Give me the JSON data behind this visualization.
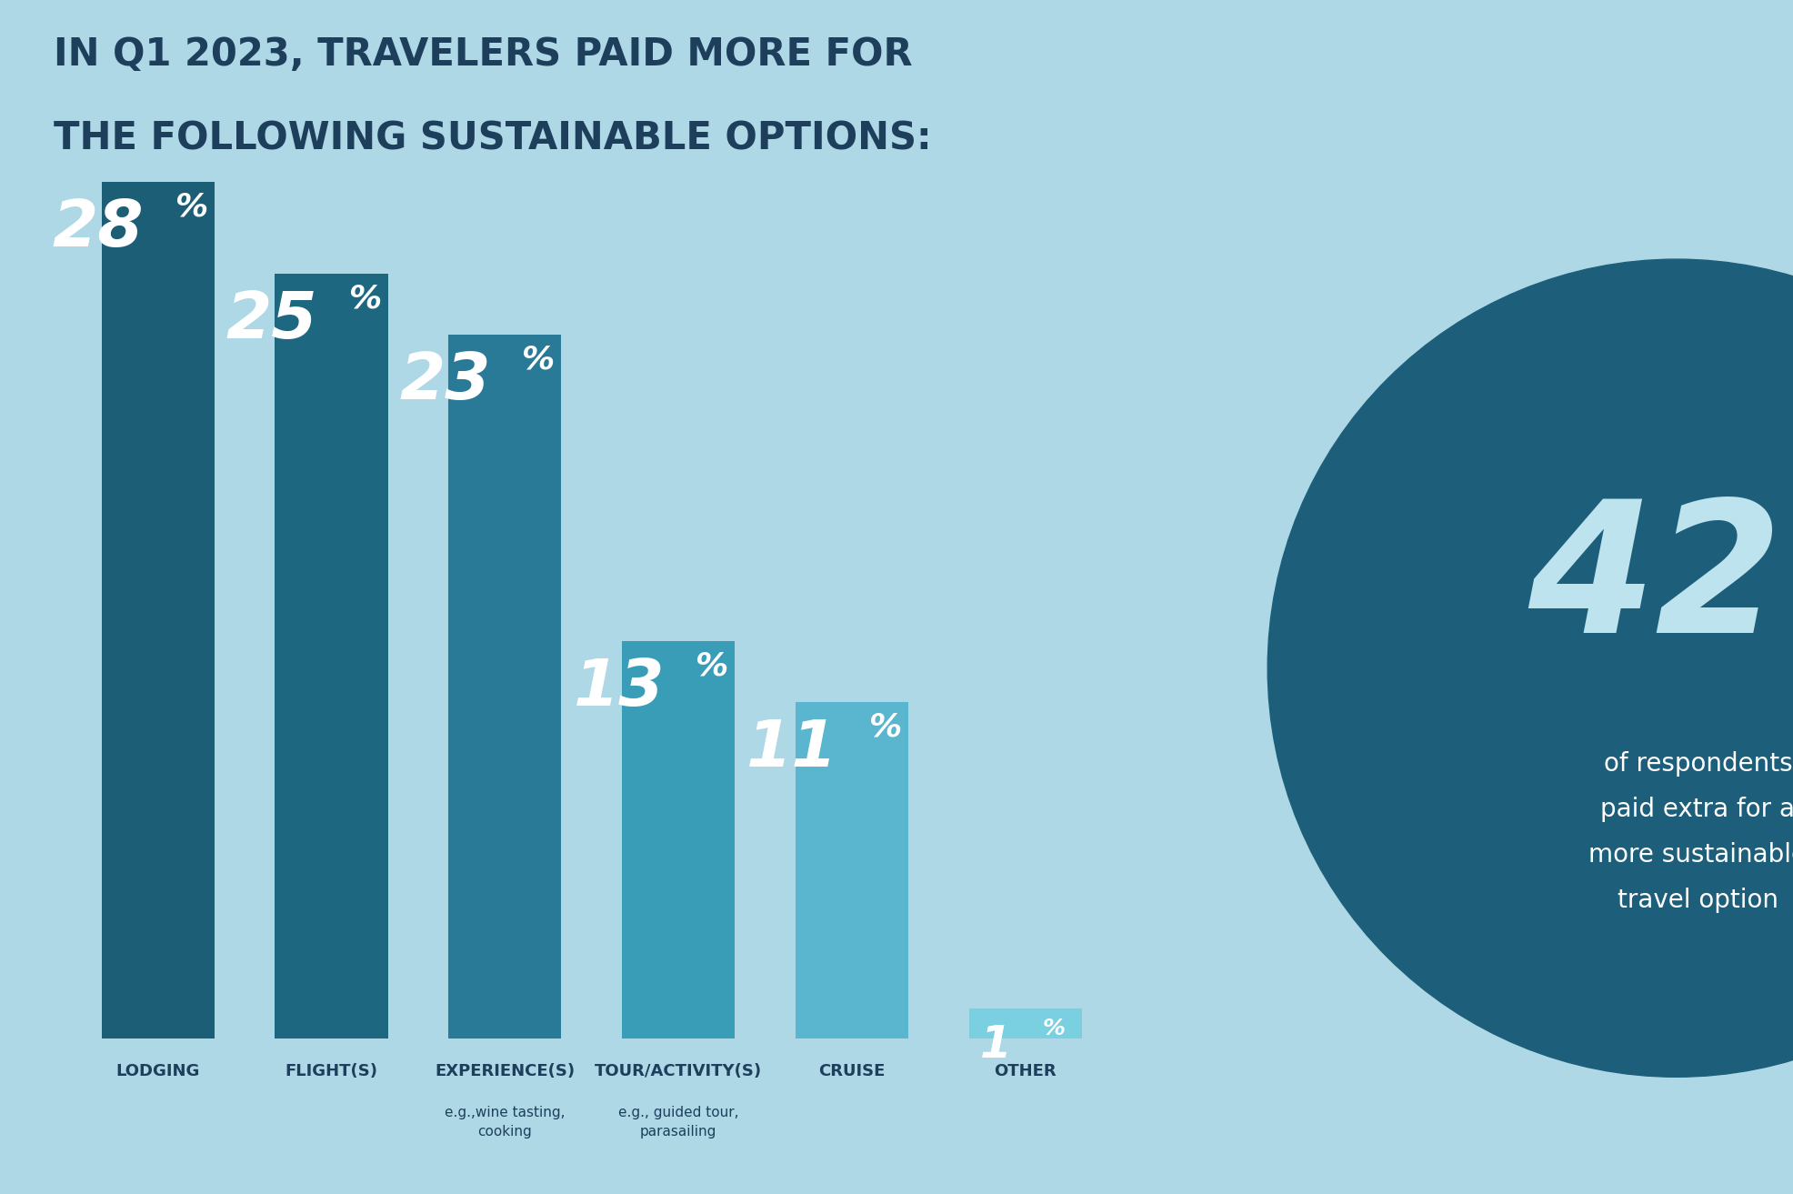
{
  "title_line1": "IN Q1 2023, TRAVELERS PAID MORE FOR",
  "title_line2": "THE FOLLOWING SUSTAINABLE OPTIONS:",
  "background_color": "#AED8E6",
  "categories": [
    "LODGING",
    "FLIGHT(S)",
    "EXPERIENCE(S)",
    "TOUR/ACTIVITY(S)",
    "CRUISE",
    "OTHER"
  ],
  "subcategories": [
    "",
    "",
    "e.g.,wine tasting,\ncooking",
    "e.g., guided tour,\nparasailing",
    "",
    ""
  ],
  "values": [
    28,
    25,
    23,
    13,
    11,
    1
  ],
  "bar_colors": [
    "#1B5E75",
    "#1D6880",
    "#287A96",
    "#3A9DB8",
    "#5AB5CF",
    "#7ACFE0"
  ],
  "circle_color": "#1D5F7A",
  "circle_big_num": "42",
  "circle_pct": "%",
  "circle_subtext": "of respondents\npaid extra for a\nmore sustainable\ntravel option",
  "title_color": "#1D3F5C",
  "label_color": "#1D3F5C",
  "sublabel_color": "#1D3F5C",
  "value_color": "#FFFFFF",
  "circle_text_color": "#BDE3EE",
  "circle_subtext_color": "#FFFFFF",
  "ylim": [
    0,
    30
  ],
  "figsize": [
    19.72,
    13.13
  ],
  "dpi": 100
}
